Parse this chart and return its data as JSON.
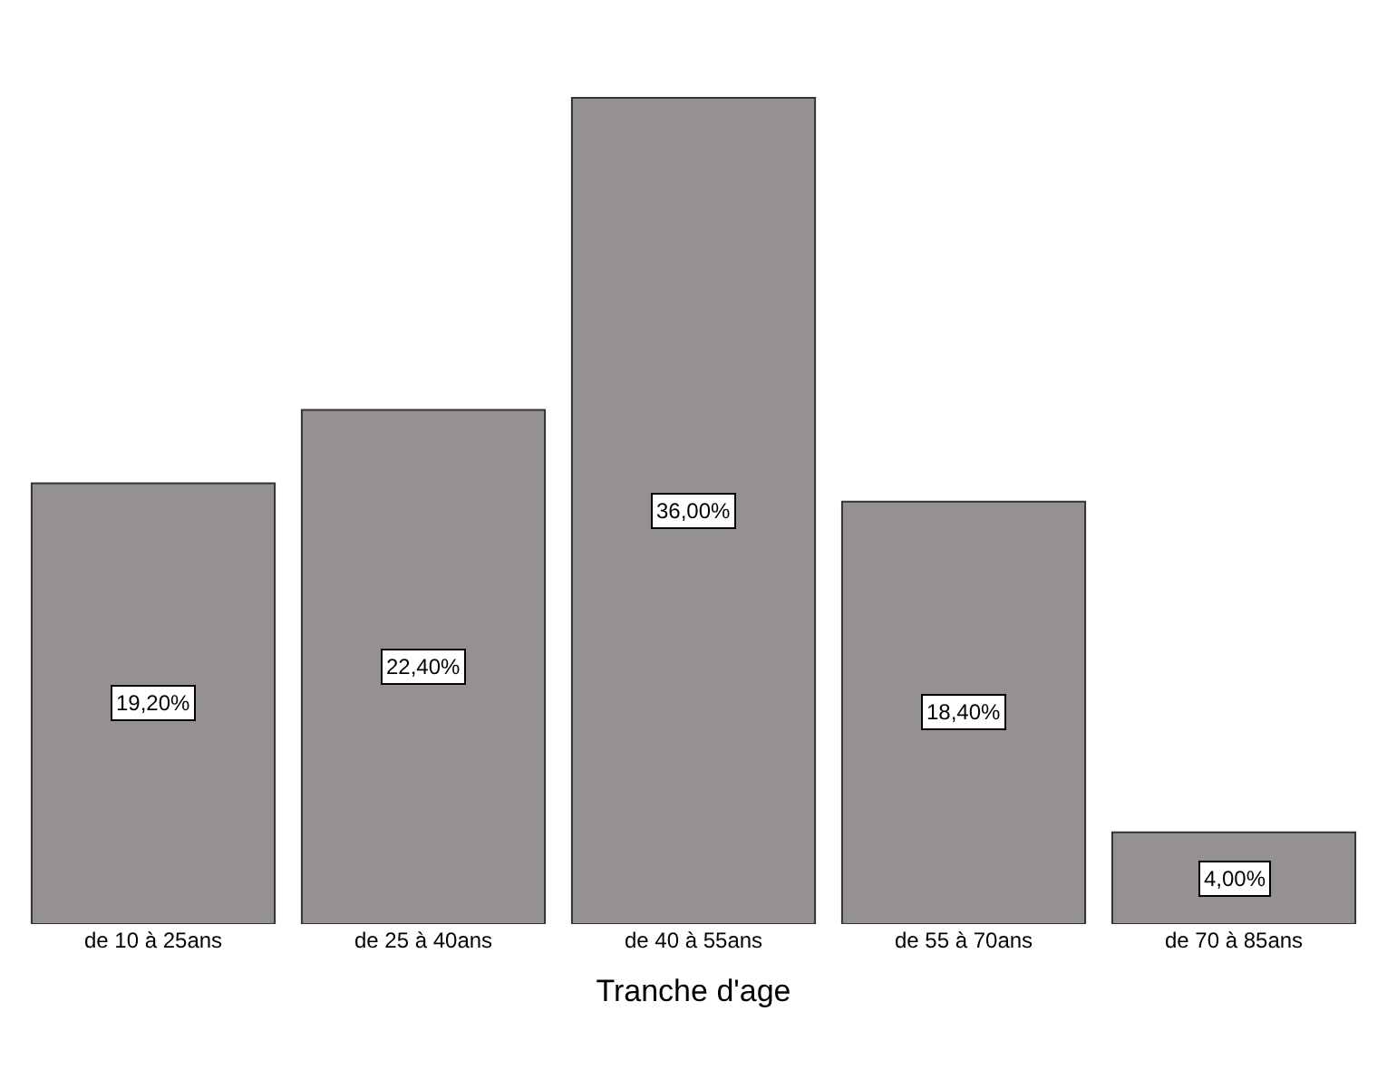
{
  "chart_data": {
    "type": "bar",
    "xlabel": "Tranche d'age",
    "categories": [
      "de 10 à 25ans",
      "de 25 à 40ans",
      "de 40 à 55ans",
      "de 55 à 70ans",
      "de 70 à 85ans"
    ],
    "values": [
      19.2,
      22.4,
      36.0,
      18.4,
      4.0
    ],
    "value_labels": [
      "19,20%",
      "22,40%",
      "36,00%",
      "18,40%",
      "4,00%"
    ],
    "color": "#959190"
  }
}
